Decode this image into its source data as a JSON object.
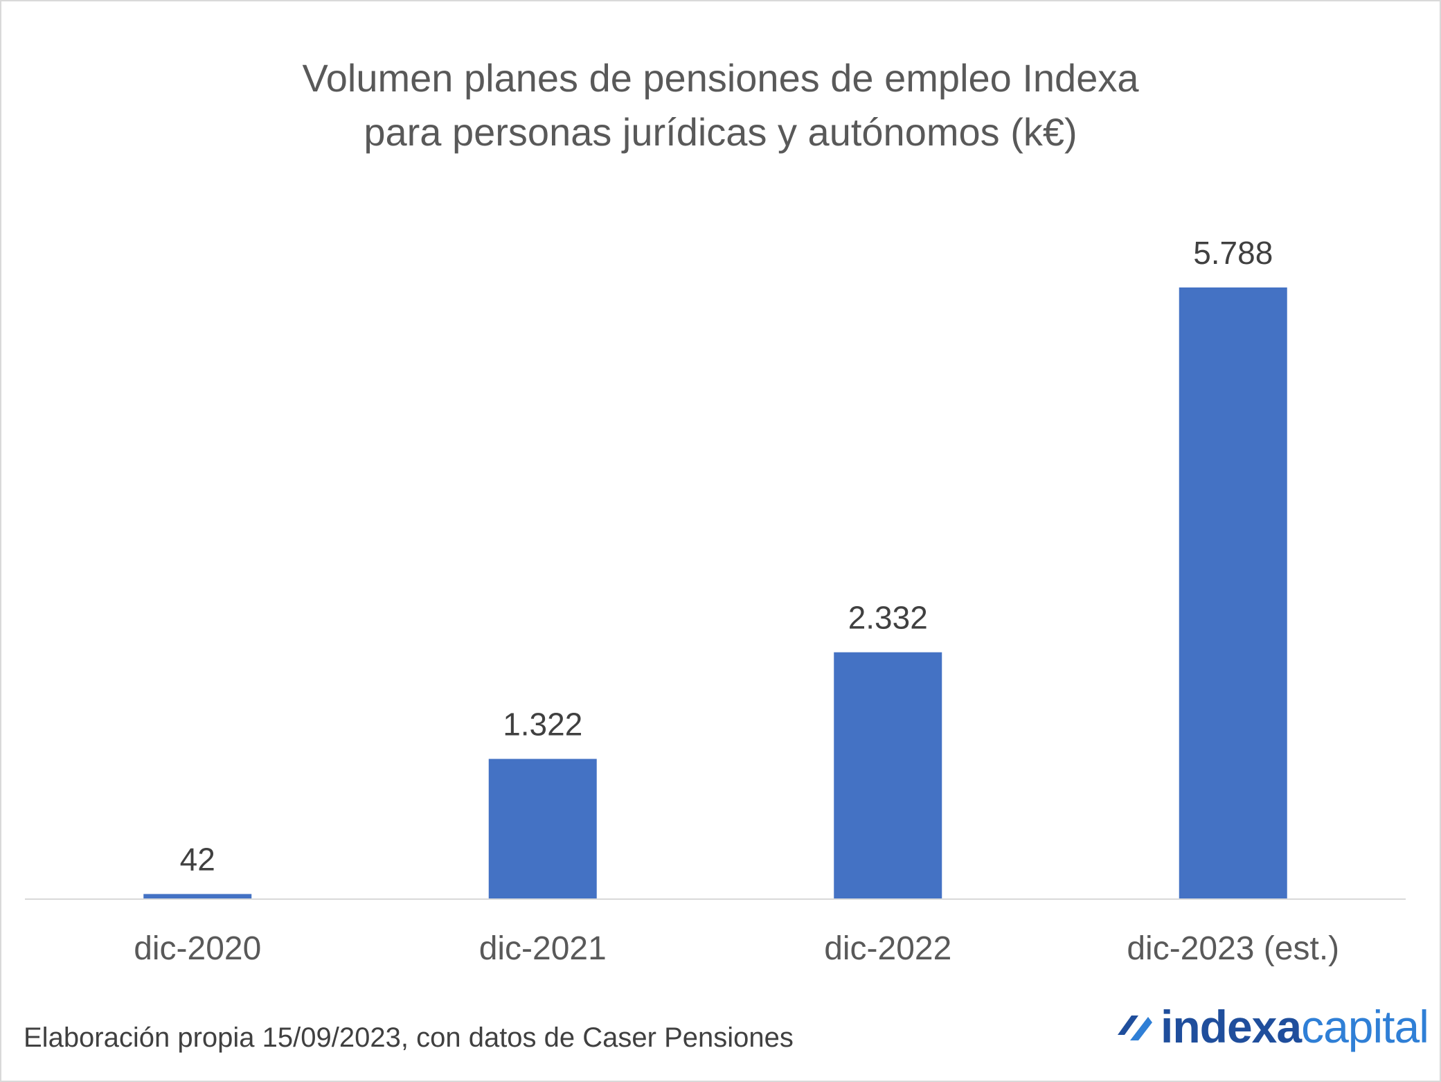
{
  "chart_data": {
    "type": "bar",
    "title_lines": [
      "Volumen planes de pensiones de empleo Indexa",
      "para personas jurídicas y autónomos (k€)"
    ],
    "categories": [
      "dic-2020",
      "dic-2021",
      "dic-2022",
      "dic-2023 (est.)"
    ],
    "values": [
      42,
      1322,
      2332,
      5788
    ],
    "value_labels": [
      "42",
      "1.322",
      "2.332",
      "5.788"
    ],
    "xlabel": "",
    "ylabel": "",
    "ylim": [
      0,
      6500
    ],
    "grid": false,
    "legend": "none",
    "bar_color": "#4472c4"
  },
  "footer": {
    "source": "Elaboración propia 15/09/2023, con datos de Caser Pensiones"
  },
  "logo": {
    "part1": "indexa",
    "part2": "capital",
    "icon": "indexa-logo-icon"
  },
  "colors": {
    "bar": "#4472c4",
    "logo_dark": "#1f4e9c",
    "logo_light": "#2f7fd6"
  }
}
